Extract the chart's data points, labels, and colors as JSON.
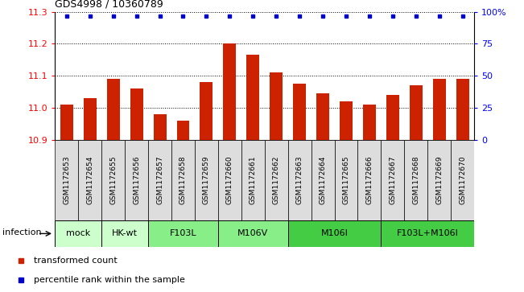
{
  "title": "GDS4998 / 10360789",
  "samples": [
    "GSM1172653",
    "GSM1172654",
    "GSM1172655",
    "GSM1172656",
    "GSM1172657",
    "GSM1172658",
    "GSM1172659",
    "GSM1172660",
    "GSM1172661",
    "GSM1172662",
    "GSM1172663",
    "GSM1172664",
    "GSM1172665",
    "GSM1172666",
    "GSM1172667",
    "GSM1172668",
    "GSM1172669",
    "GSM1172670"
  ],
  "bar_values": [
    11.01,
    11.03,
    11.09,
    11.06,
    10.98,
    10.96,
    11.08,
    11.2,
    11.165,
    11.11,
    11.075,
    11.045,
    11.02,
    11.01,
    11.04,
    11.07,
    11.09,
    11.09
  ],
  "groups": [
    {
      "label": "mock",
      "start": 0,
      "end": 2,
      "color": "#ccffcc"
    },
    {
      "label": "HK-wt",
      "start": 2,
      "end": 4,
      "color": "#ccffcc"
    },
    {
      "label": "F103L",
      "start": 4,
      "end": 7,
      "color": "#88ee88"
    },
    {
      "label": "M106V",
      "start": 7,
      "end": 10,
      "color": "#88ee88"
    },
    {
      "label": "M106I",
      "start": 10,
      "end": 14,
      "color": "#44cc44"
    },
    {
      "label": "F103L+M106I",
      "start": 14,
      "end": 18,
      "color": "#44cc44"
    }
  ],
  "infection_label": "infection",
  "bar_color": "#cc2200",
  "percentile_color": "#0000cc",
  "ylim": [
    10.9,
    11.3
  ],
  "yticks": [
    10.9,
    11.0,
    11.1,
    11.2,
    11.3
  ],
  "right_yticks": [
    0,
    25,
    50,
    75,
    100
  ],
  "right_ylabels": [
    "0",
    "25",
    "50",
    "75",
    "100%"
  ],
  "legend_bar_label": "transformed count",
  "legend_pct_label": "percentile rank within the sample"
}
